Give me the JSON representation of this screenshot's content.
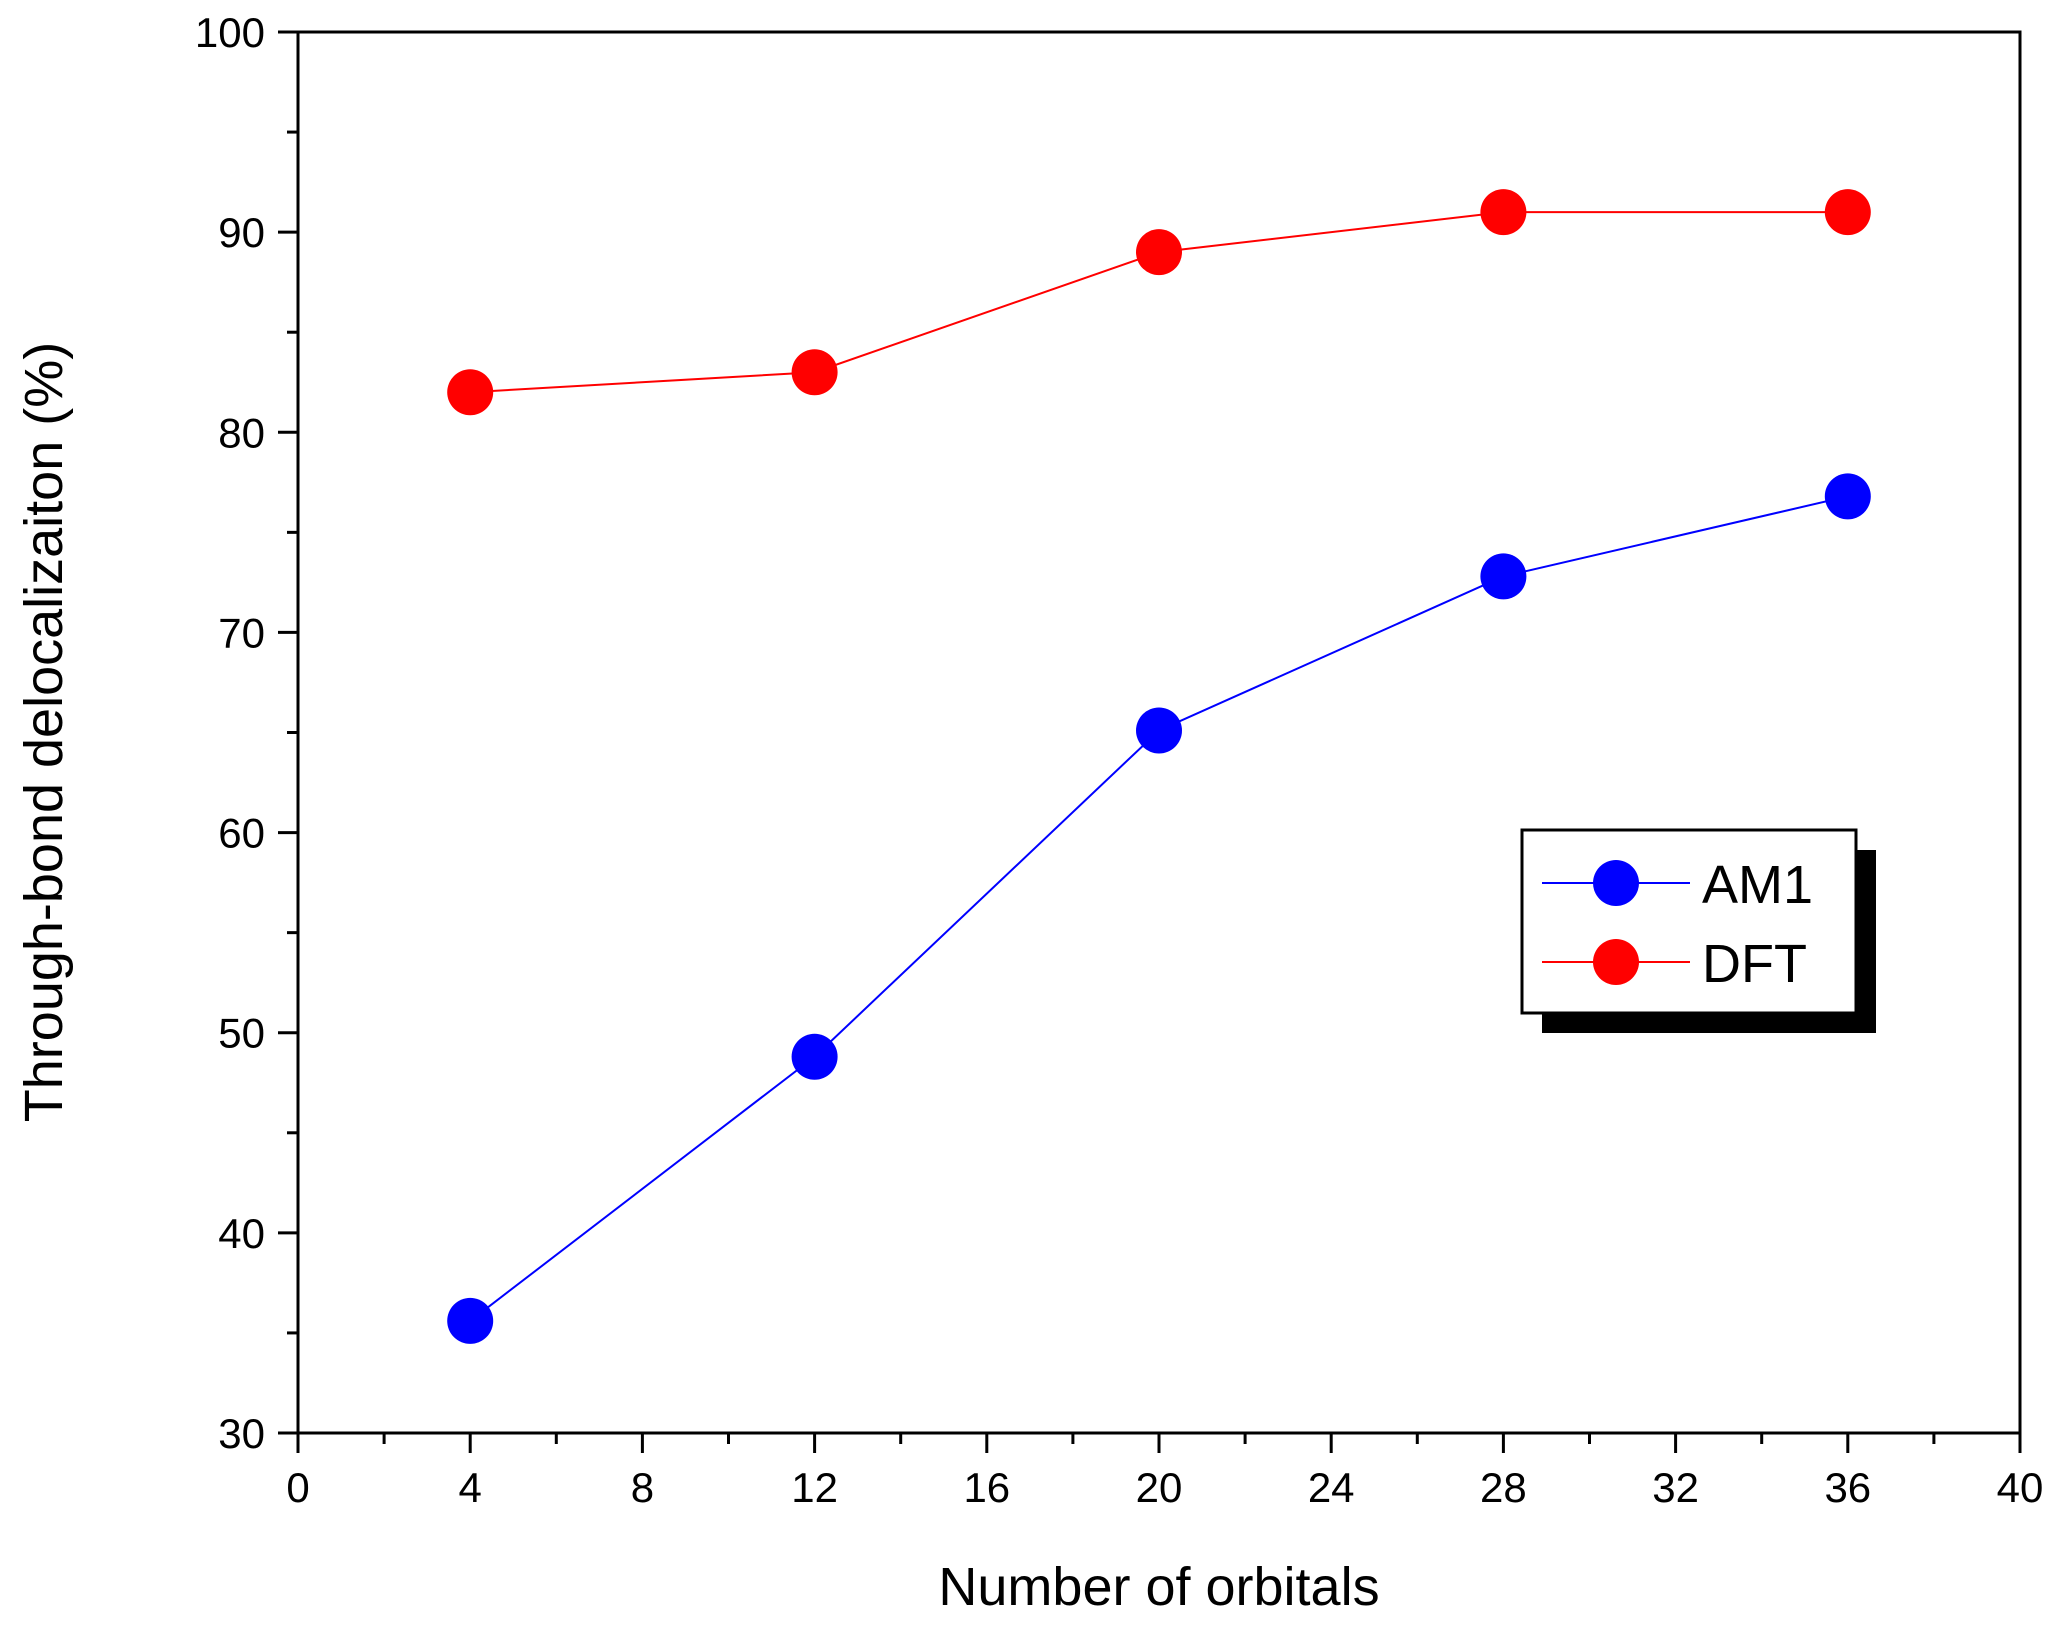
{
  "chart_data": {
    "type": "line",
    "title": "",
    "xlabel": "Number of orbitals",
    "ylabel": "Through-bond delocalizaiton (%)",
    "xlim": [
      0,
      40
    ],
    "ylim": [
      30,
      100
    ],
    "x_major_ticks": [
      0,
      4,
      8,
      12,
      16,
      20,
      24,
      28,
      32,
      36,
      40
    ],
    "x_minor_ticks": [
      2,
      6,
      10,
      14,
      18,
      22,
      26,
      30,
      34,
      38
    ],
    "y_major_ticks": [
      30,
      40,
      50,
      60,
      70,
      80,
      90,
      100
    ],
    "y_minor_ticks": [
      35,
      45,
      55,
      65,
      75,
      85,
      95
    ],
    "x_tick_labels": [
      "0",
      "4",
      "8",
      "12",
      "16",
      "20",
      "24",
      "28",
      "32",
      "36",
      "40"
    ],
    "y_tick_labels": [
      "30",
      "40",
      "50",
      "60",
      "70",
      "80",
      "90",
      "100"
    ],
    "grid": false,
    "legend_position": "right",
    "series": [
      {
        "name": "AM1",
        "color": "#0000ff",
        "x": [
          4,
          12,
          20,
          28,
          36
        ],
        "values": [
          35.6,
          48.8,
          65.1,
          72.8,
          76.8
        ]
      },
      {
        "name": "DFT",
        "color": "#ff0000",
        "x": [
          4,
          12,
          20,
          28,
          36
        ],
        "values": [
          82.0,
          83.0,
          89.0,
          91.0,
          91.0
        ]
      }
    ]
  }
}
